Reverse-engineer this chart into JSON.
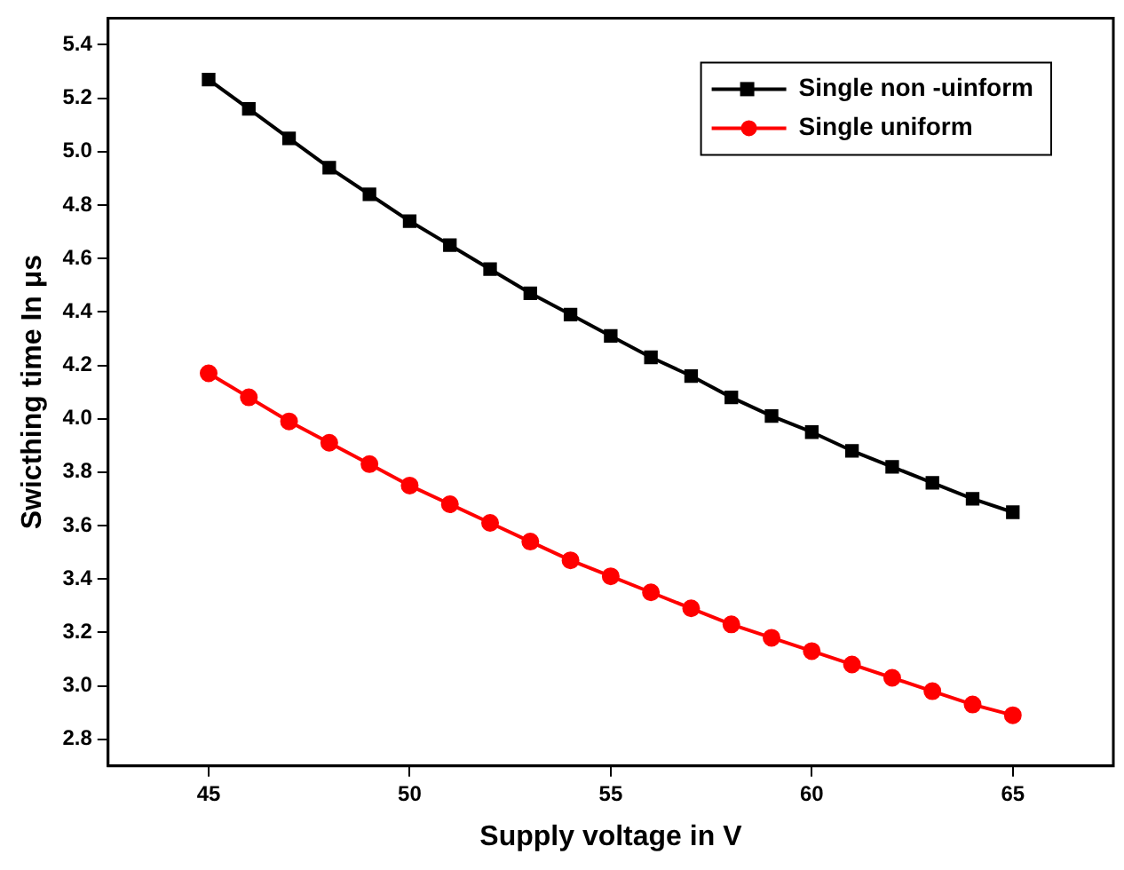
{
  "chart_data": {
    "type": "line",
    "xlabel": "Supply voltage in V",
    "ylabel": "Swicthing time In μs",
    "x": [
      45,
      46,
      47,
      48,
      49,
      50,
      51,
      52,
      53,
      54,
      55,
      56,
      57,
      58,
      59,
      60,
      61,
      62,
      63,
      64,
      65
    ],
    "series": [
      {
        "name": "Single non -uinform",
        "color": "#000000",
        "marker": "square",
        "values": [
          5.27,
          5.16,
          5.05,
          4.94,
          4.84,
          4.74,
          4.65,
          4.56,
          4.47,
          4.39,
          4.31,
          4.23,
          4.16,
          4.08,
          4.01,
          3.95,
          3.88,
          3.82,
          3.76,
          3.7,
          3.65
        ]
      },
      {
        "name": "Single uniform",
        "color": "#ff0000",
        "marker": "circle",
        "values": [
          4.17,
          4.08,
          3.99,
          3.91,
          3.83,
          3.75,
          3.68,
          3.61,
          3.54,
          3.47,
          3.41,
          3.35,
          3.29,
          3.23,
          3.18,
          3.13,
          3.08,
          3.03,
          2.98,
          2.93,
          2.89
        ]
      }
    ],
    "xlim": [
      42.5,
      67.5
    ],
    "xticks": [
      45,
      50,
      55,
      60,
      65
    ],
    "ylim": [
      2.7,
      5.5
    ],
    "yticks": [
      2.8,
      {
        "value": 3,
        "label": "3.0"
      },
      3.2,
      3.4,
      3.6,
      3.8,
      {
        "value": 4,
        "label": "4.0"
      },
      4.2,
      4.4,
      4.6,
      4.8,
      {
        "value": 5,
        "label": "5.0"
      },
      5.2,
      5.4
    ],
    "grid": false,
    "legend": "top right"
  }
}
